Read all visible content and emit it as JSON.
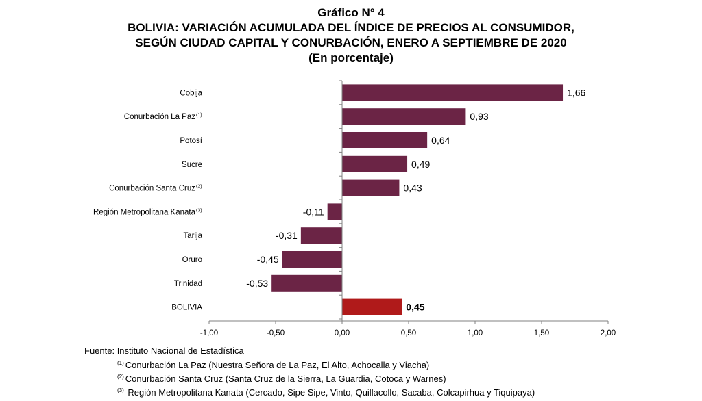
{
  "title": {
    "line1": "Gráfico N° 4",
    "line2": "BOLIVIA: VARIACIÓN ACUMULADA DEL ÍNDICE DE PRECIOS AL CONSUMIDOR,",
    "line3": "SEGÚN CIUDAD CAPITAL Y CONURBACIÓN, ENERO A SEPTIEMBRE DE 2020",
    "line4": "(En porcentaje)"
  },
  "chart_data": {
    "type": "bar",
    "orientation": "horizontal",
    "categories": [
      {
        "label": "Cobija",
        "sup": ""
      },
      {
        "label": "Conurbación La Paz",
        "sup": "(1)"
      },
      {
        "label": "Potosí",
        "sup": ""
      },
      {
        "label": "Sucre",
        "sup": ""
      },
      {
        "label": "Conurbación Santa Cruz",
        "sup": "(2)"
      },
      {
        "label": "Región Metropolitana Kanata",
        "sup": "(3)"
      },
      {
        "label": "Tarija",
        "sup": ""
      },
      {
        "label": "Oruro",
        "sup": ""
      },
      {
        "label": "Trinidad",
        "sup": ""
      },
      {
        "label": "BOLIVIA",
        "sup": ""
      }
    ],
    "values": [
      1.66,
      0.93,
      0.64,
      0.49,
      0.43,
      -0.11,
      -0.31,
      -0.45,
      -0.53,
      0.45
    ],
    "value_labels": [
      "1,66",
      "0,93",
      "0,64",
      "0,49",
      "0,43",
      "-0,11",
      "-0,31",
      "-0,45",
      "-0,53",
      "0,45"
    ],
    "highlight_index": 9,
    "xlim": [
      -1.0,
      2.0
    ],
    "xticks": [
      -1.0,
      -0.5,
      0.0,
      0.5,
      1.0,
      1.5,
      2.0
    ],
    "xtick_labels": [
      "-1,00",
      "-0,50",
      "0,00",
      "0,50",
      "1,00",
      "1,50",
      "2,00"
    ],
    "colors": {
      "bar": "#6b2445",
      "highlight": "#b01a1a",
      "axis": "#808080"
    }
  },
  "notes": {
    "source": "Fuente: Instituto Nacional de Estadística",
    "footnotes": [
      {
        "mark": "(1)",
        "text": "Conurbación La Paz (Nuestra Señora de La Paz, El Alto, Achocalla y Viacha)"
      },
      {
        "mark": "(2)",
        "text": "Conurbación Santa Cruz (Santa Cruz de la Sierra, La Guardia, Cotoca y Warnes)"
      },
      {
        "mark": "(3)",
        "text": " Región Metropolitana Kanata (Cercado, Sipe Sipe, Vinto, Quillacollo, Sacaba, Colcapirhua y Tiquipaya)"
      }
    ]
  }
}
